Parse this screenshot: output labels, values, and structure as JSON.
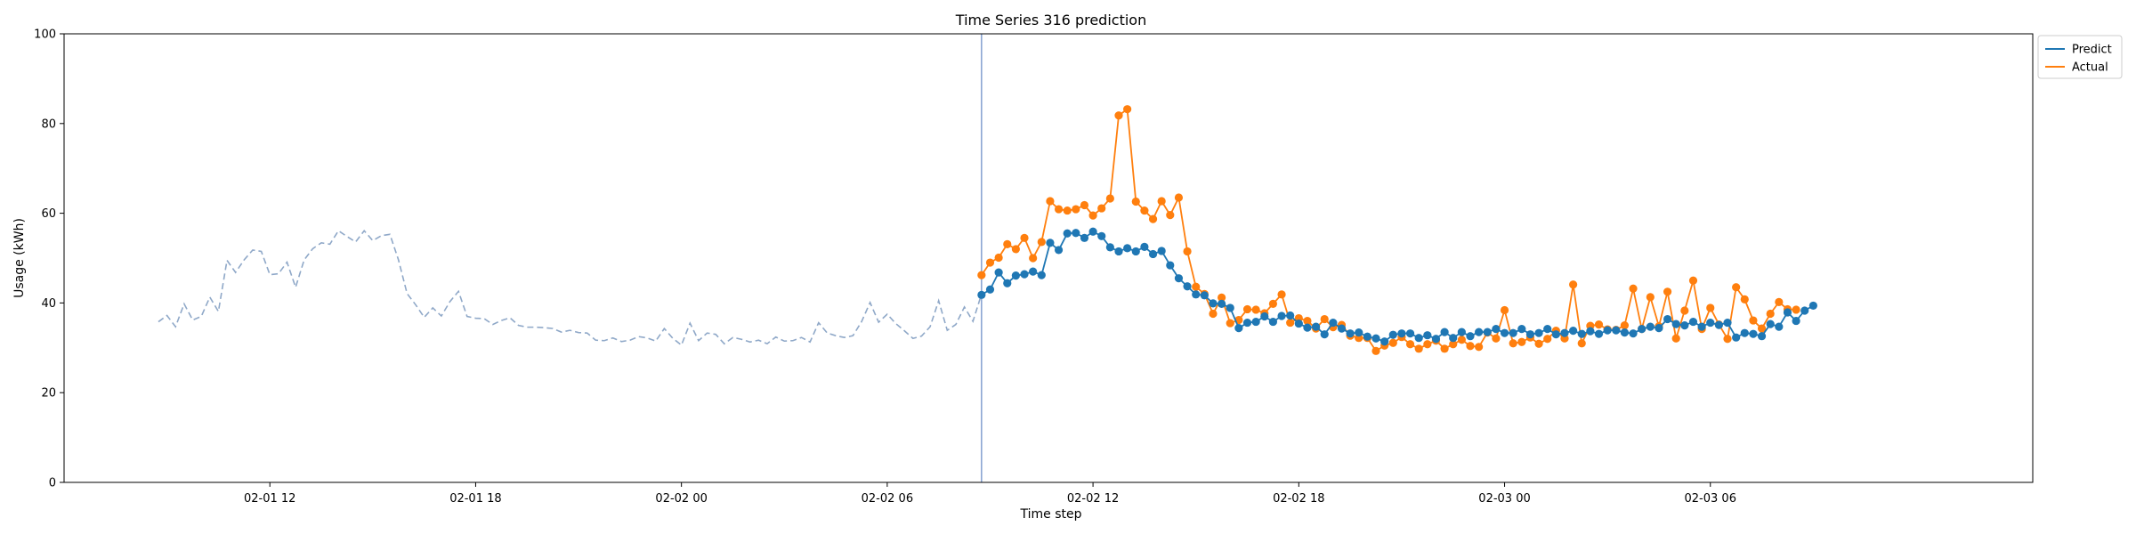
{
  "chart_data": {
    "type": "line",
    "title": "Time Series 316 prediction",
    "xlabel": "Time step",
    "ylabel": "Usage (kWh)",
    "ylim": [
      0,
      100
    ],
    "yticks": [
      0,
      20,
      40,
      60,
      80,
      100
    ],
    "x_axis": "time (hours from 02-01 00:00)",
    "xticks": [
      {
        "value": 12,
        "label": "02-01 12"
      },
      {
        "value": 18,
        "label": "02-01 18"
      },
      {
        "value": 24,
        "label": "02-02 00"
      },
      {
        "value": 30,
        "label": "02-02 06"
      },
      {
        "value": 36,
        "label": "02-02 12"
      },
      {
        "value": 42,
        "label": "02-02 18"
      },
      {
        "value": 48,
        "label": "02-03 00"
      },
      {
        "value": 54,
        "label": "02-03 06"
      }
    ],
    "xlim": [
      6.0,
      63.4
    ],
    "step_hours": 0.25,
    "forecast_split_x": 32.75,
    "legend": {
      "placement": "upper-right outside",
      "entries": [
        "Predict",
        "Actual"
      ]
    },
    "colors": {
      "predict": "#1f77b4",
      "actual": "#ff7f0e",
      "history": "#8fa8c8",
      "split_line": "#7090c8"
    },
    "history": {
      "style": "dashed",
      "x_start": 8.75,
      "values": [
        35.8,
        37.2,
        34.7,
        39.8,
        36.2,
        37.0,
        41.3,
        38.1,
        49.5,
        46.8,
        49.6,
        51.8,
        51.5,
        46.3,
        46.5,
        49.1,
        43.5,
        49.6,
        52.1,
        53.4,
        53.1,
        56.1,
        54.8,
        53.6,
        56.1,
        53.9,
        55.0,
        55.3,
        49.6,
        42.1,
        39.6,
        36.8,
        38.9,
        37.1,
        40.3,
        42.6,
        37.0,
        36.6,
        36.5,
        35.2,
        36.1,
        36.7,
        35.0,
        34.6,
        34.6,
        34.5,
        34.3,
        33.5,
        33.9,
        33.4,
        33.3,
        31.7,
        31.6,
        32.2,
        31.4,
        31.7,
        32.5,
        32.2,
        31.5,
        34.3,
        32.1,
        30.6,
        35.5,
        31.6,
        33.3,
        33.0,
        30.9,
        32.3,
        31.9,
        31.3,
        31.7,
        30.9,
        32.4,
        31.5,
        31.6,
        32.3,
        31.3,
        35.6,
        33.3,
        32.7,
        32.3,
        32.7,
        35.8,
        40.1,
        35.7,
        37.5,
        35.4,
        33.8,
        32.1,
        32.6,
        34.7,
        40.5,
        33.9,
        35.2,
        39.1,
        35.9,
        42.0
      ]
    },
    "series": [
      {
        "name": "Predict",
        "x_start": 32.75,
        "values": [
          41.8,
          43.0,
          46.8,
          44.4,
          46.1,
          46.4,
          47.0,
          46.2,
          53.4,
          51.8,
          55.5,
          55.6,
          54.5,
          55.9,
          54.9,
          52.4,
          51.5,
          52.2,
          51.5,
          52.5,
          50.9,
          51.6,
          48.4,
          45.5,
          43.7,
          41.9,
          41.7,
          39.9,
          39.8,
          38.9,
          34.4,
          35.6,
          35.8,
          37.0,
          35.8,
          37.1,
          37.2,
          35.4,
          34.5,
          34.7,
          33.0,
          35.6,
          34.3,
          33.2,
          33.4,
          32.5,
          32.1,
          31.4,
          32.9,
          33.2,
          33.2,
          32.2,
          32.8,
          32.0,
          33.5,
          32.2,
          33.5,
          32.6,
          33.5,
          33.5,
          34.2,
          33.3,
          33.3,
          34.2,
          33.0,
          33.3,
          34.2,
          33.0,
          33.3,
          33.8,
          33.1,
          33.7,
          33.1,
          33.9,
          33.9,
          33.4,
          33.2,
          34.2,
          34.7,
          34.4,
          36.4,
          35.3,
          35.0,
          35.8,
          34.7,
          35.6,
          35.1,
          35.6,
          32.3,
          33.3,
          33.1,
          32.6,
          35.3,
          34.7,
          37.9,
          36.0,
          38.3,
          39.4
        ]
      },
      {
        "name": "Actual",
        "x_start": 32.75,
        "values": [
          46.2,
          49.0,
          50.1,
          53.1,
          52.0,
          54.5,
          50.0,
          53.6,
          62.7,
          60.9,
          60.6,
          60.9,
          61.8,
          59.5,
          61.1,
          63.3,
          81.8,
          83.2,
          62.6,
          60.6,
          58.7,
          62.7,
          59.6,
          63.5,
          51.5,
          43.6,
          42.0,
          37.6,
          41.2,
          35.5,
          36.2,
          38.6,
          38.5,
          37.7,
          39.8,
          41.9,
          35.6,
          36.6,
          36.0,
          34.3,
          36.4,
          34.6,
          35.1,
          32.7,
          32.2,
          32.2,
          29.3,
          30.5,
          31.1,
          32.4,
          30.8,
          29.8,
          30.8,
          31.6,
          29.8,
          30.8,
          31.8,
          30.4,
          30.2,
          33.4,
          32.1,
          38.4,
          31.0,
          31.3,
          32.3,
          30.9,
          32.0,
          33.8,
          32.1,
          44.1,
          31.0,
          34.9,
          35.2,
          34.1,
          34.0,
          35.0,
          43.2,
          34.2,
          41.3,
          34.8,
          42.5,
          32.1,
          38.3,
          45.0,
          34.2,
          38.9,
          35.2,
          32.0,
          43.5,
          40.8,
          36.1,
          34.3,
          37.6,
          40.2,
          38.6,
          38.5
        ]
      }
    ]
  }
}
